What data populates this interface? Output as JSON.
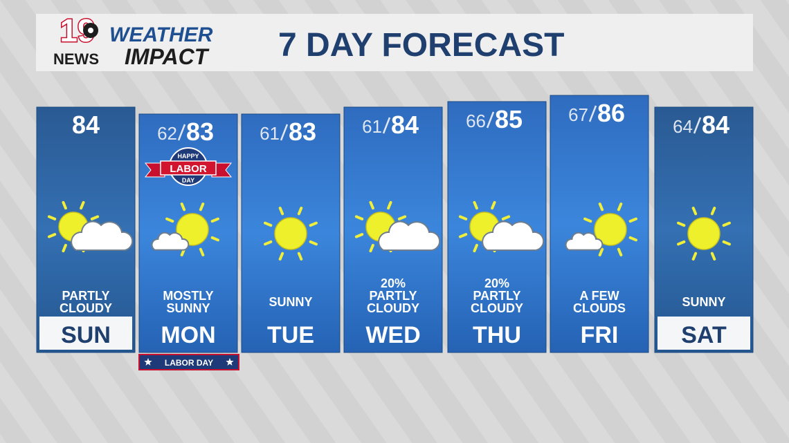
{
  "header": {
    "logo_number": "19",
    "logo_news": "NEWS",
    "brand_top": "WEATHER",
    "brand_bottom": "IMPACT",
    "title": "7 DAY FORECAST"
  },
  "days": [
    {
      "day": "SUN",
      "low": null,
      "high": "84",
      "precip": null,
      "condition": [
        "PARTLY",
        "CLOUDY"
      ]
    },
    {
      "day": "MON",
      "low": "62",
      "high": "83",
      "precip": null,
      "condition": [
        "MOSTLY",
        "SUNNY"
      ]
    },
    {
      "day": "TUE",
      "low": "61",
      "high": "83",
      "precip": null,
      "condition": [
        "SUNNY"
      ]
    },
    {
      "day": "WED",
      "low": "61",
      "high": "84",
      "precip": "20%",
      "condition": [
        "PARTLY",
        "CLOUDY"
      ]
    },
    {
      "day": "THU",
      "low": "66",
      "high": "85",
      "precip": "20%",
      "condition": [
        "PARTLY",
        "CLOUDY"
      ]
    },
    {
      "day": "FRI",
      "low": "67",
      "high": "86",
      "precip": null,
      "condition": [
        "A FEW",
        "CLOUDS"
      ]
    },
    {
      "day": "SAT",
      "low": "64",
      "high": "84",
      "precip": null,
      "condition": [
        "SUNNY"
      ]
    }
  ],
  "badge": {
    "top": "HAPPY",
    "middle": "LABOR",
    "bottom": "DAY"
  },
  "banner": "LABOR DAY"
}
